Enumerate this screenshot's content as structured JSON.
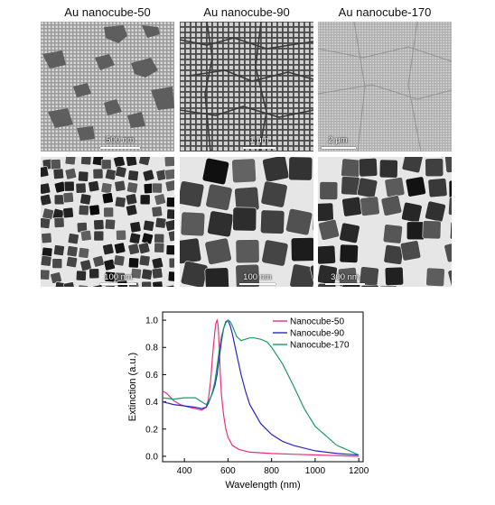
{
  "panels": {
    "titles": [
      "Au nanocube-50",
      "Au nanocube-90",
      "Au nanocube-170"
    ],
    "sem_scale_bars": [
      "500 nm",
      "1 μm",
      "2 μm"
    ],
    "tem_scale_bars": [
      "100 nm",
      "100 nm",
      "300 nm"
    ]
  },
  "chart_data": {
    "type": "line",
    "xlabel": "Wavelength (nm)",
    "ylabel": "Extinction (a.u.)",
    "xlim": [
      300,
      1220
    ],
    "ylim": [
      -0.04,
      1.06
    ],
    "xticks": [
      400,
      600,
      800,
      1000,
      1200
    ],
    "yticks": [
      0.0,
      0.2,
      0.4,
      0.6,
      0.8,
      1.0
    ],
    "legend_position": "top-right",
    "series": [
      {
        "name": "Nanocube-50",
        "color": "#e8307a",
        "x": [
          300,
          320,
          350,
          380,
          420,
          450,
          480,
          500,
          510,
          520,
          530,
          540,
          545,
          550,
          555,
          560,
          565,
          570,
          580,
          590,
          600,
          620,
          650,
          700,
          800,
          900,
          1000,
          1100,
          1200
        ],
        "y": [
          0.48,
          0.46,
          0.41,
          0.38,
          0.36,
          0.35,
          0.34,
          0.36,
          0.42,
          0.55,
          0.75,
          0.92,
          0.98,
          1.0,
          0.96,
          0.8,
          0.6,
          0.45,
          0.3,
          0.2,
          0.14,
          0.08,
          0.05,
          0.03,
          0.02,
          0.015,
          0.01,
          0.005,
          0.0
        ]
      },
      {
        "name": "Nanocube-90",
        "color": "#2626c8",
        "x": [
          300,
          350,
          400,
          450,
          480,
          500,
          510,
          520,
          530,
          540,
          550,
          560,
          570,
          580,
          590,
          600,
          610,
          620,
          640,
          660,
          680,
          700,
          750,
          800,
          850,
          900,
          1000,
          1100,
          1200
        ],
        "y": [
          0.4,
          0.38,
          0.37,
          0.36,
          0.35,
          0.36,
          0.39,
          0.43,
          0.47,
          0.52,
          0.6,
          0.72,
          0.85,
          0.94,
          0.99,
          1.0,
          0.96,
          0.9,
          0.75,
          0.6,
          0.48,
          0.38,
          0.24,
          0.16,
          0.11,
          0.08,
          0.04,
          0.02,
          0.01
        ]
      },
      {
        "name": "Nanocube-170",
        "color": "#1a9a62",
        "x": [
          300,
          350,
          400,
          450,
          480,
          500,
          510,
          520,
          530,
          540,
          550,
          560,
          570,
          580,
          590,
          600,
          610,
          620,
          640,
          660,
          680,
          700,
          720,
          750,
          780,
          800,
          850,
          900,
          950,
          1000,
          1100,
          1200
        ],
        "y": [
          0.43,
          0.42,
          0.43,
          0.43,
          0.4,
          0.38,
          0.4,
          0.43,
          0.48,
          0.55,
          0.66,
          0.78,
          0.88,
          0.94,
          0.98,
          1.0,
          0.99,
          0.96,
          0.88,
          0.85,
          0.86,
          0.87,
          0.87,
          0.86,
          0.84,
          0.8,
          0.68,
          0.52,
          0.35,
          0.22,
          0.08,
          0.01
        ]
      }
    ]
  }
}
